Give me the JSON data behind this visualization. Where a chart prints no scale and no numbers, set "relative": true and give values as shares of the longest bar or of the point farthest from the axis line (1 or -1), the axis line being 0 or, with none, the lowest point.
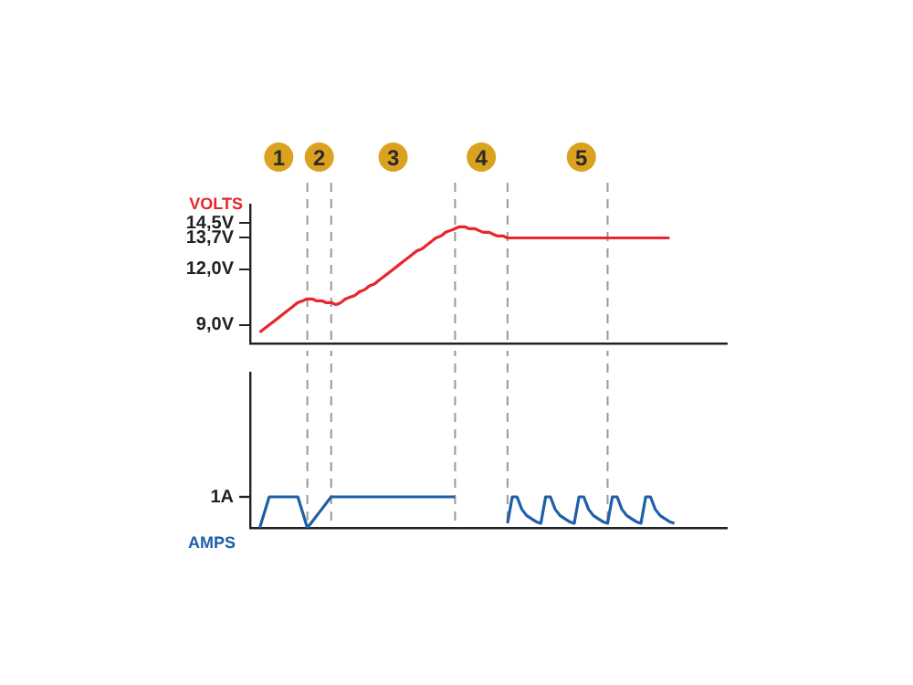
{
  "chart_data": [
    {
      "type": "line",
      "ylabel": "VOLTS",
      "ylim": [
        8,
        15.5
      ],
      "tick_labels": "y",
      "marker": "none",
      "line_style": "solid",
      "annotations": [
        "1",
        "2",
        "3",
        "4",
        "5"
      ],
      "categories": [
        null,
        null,
        null,
        null,
        null,
        null,
        null,
        null,
        null,
        null,
        null,
        null,
        null,
        null,
        null,
        null,
        null,
        null,
        null,
        null,
        null,
        null,
        null,
        null,
        null,
        null,
        null,
        null,
        null,
        null,
        null,
        null,
        null,
        null,
        null,
        null,
        null,
        null,
        null,
        null,
        null,
        null,
        null,
        null,
        null,
        null,
        null,
        null,
        null,
        null,
        null,
        null,
        null,
        null,
        null,
        null,
        null,
        null,
        null,
        null,
        null,
        null,
        null,
        null,
        null,
        null,
        null,
        null,
        null,
        null,
        null,
        null,
        null,
        null,
        null,
        null,
        null,
        null,
        null,
        null,
        null,
        null,
        null,
        null,
        null,
        null,
        null,
        null,
        null,
        null,
        null,
        null,
        null,
        null,
        null,
        null,
        null,
        null,
        null,
        null,
        null
      ],
      "yticks": [
        {
          "value": 9,
          "label": "9,0V"
        },
        {
          "value": 12,
          "label": "12,0V"
        },
        {
          "value": 13.7,
          "label": "13,7V"
        },
        {
          "value": 14.5,
          "label": "14,5V"
        }
      ],
      "series": [
        {
          "color": "#e8262b",
          "values": [
            null,
            null,
            8.6,
            8.8,
            9.0,
            9.2,
            9.4,
            9.6,
            9.8,
            10.0,
            10.2,
            10.3,
            10.4,
            10.4,
            10.3,
            10.3,
            10.2,
            10.2,
            10.1,
            10.2,
            10.4,
            10.5,
            10.6,
            10.8,
            10.9,
            11.1,
            11.2,
            11.4,
            11.6,
            11.8,
            12.0,
            12.2,
            12.4,
            12.6,
            12.8,
            13.0,
            13.1,
            13.3,
            13.5,
            13.7,
            13.8,
            14.0,
            14.1,
            14.2,
            14.3,
            14.3,
            14.2,
            14.2,
            14.1,
            14.0,
            14.0,
            13.9,
            13.8,
            13.8,
            13.7,
            13.7,
            13.7,
            13.7,
            13.7,
            13.7,
            13.7,
            13.7,
            13.7,
            13.7,
            13.7,
            13.7,
            13.7,
            13.7,
            13.7,
            13.7,
            13.7,
            13.7,
            13.7,
            13.7,
            13.7,
            13.7,
            13.7,
            13.7,
            13.7,
            13.7,
            13.7,
            13.7,
            13.7,
            13.7,
            13.7,
            13.7,
            13.7,
            13.7,
            13.7,
            null,
            null,
            null,
            null,
            null,
            null,
            null,
            null,
            null,
            null,
            null,
            null
          ]
        }
      ]
    },
    {
      "type": "line",
      "ylabel": "AMPS",
      "relative": true,
      "tick_labels": false,
      "marker": "none",
      "line_style": "solid",
      "annotations": [
        "1A"
      ],
      "categories": [
        null,
        null,
        null,
        null,
        null,
        null,
        null,
        null,
        null,
        null,
        null,
        null,
        null,
        null,
        null,
        null,
        null,
        null,
        null,
        null,
        null,
        null,
        null,
        null,
        null,
        null,
        null,
        null,
        null,
        null,
        null,
        null,
        null,
        null,
        null,
        null,
        null,
        null,
        null,
        null,
        null,
        null,
        null,
        null,
        null,
        null,
        null,
        null,
        null,
        null,
        null,
        null,
        null,
        null,
        null,
        null,
        null,
        null,
        null,
        null,
        null,
        null,
        null,
        null,
        null,
        null,
        null,
        null,
        null,
        null,
        null,
        null,
        null,
        null,
        null,
        null,
        null,
        null,
        null,
        null,
        null,
        null,
        null,
        null,
        null,
        null,
        null,
        null,
        null,
        null,
        null,
        null,
        null,
        null,
        null,
        null,
        null,
        null,
        null,
        null,
        null
      ],
      "series": [
        {
          "color": "#1f5fa8",
          "values": [
            null,
            null,
            0,
            0.5,
            1,
            1,
            1,
            1,
            1,
            1,
            1,
            0.5,
            0,
            0.2,
            0.4,
            0.6,
            0.8,
            1,
            1,
            1,
            1,
            1,
            1,
            1,
            1,
            1,
            1,
            1,
            1,
            1,
            1,
            1,
            1,
            1,
            1,
            1,
            1,
            1,
            1,
            1,
            1,
            1,
            1,
            1,
            null,
            null,
            null,
            null,
            null,
            null,
            null,
            null,
            null,
            null,
            0.15,
            1,
            1,
            0.6,
            0.4,
            0.3,
            0.2,
            0.15,
            1,
            1,
            0.6,
            0.4,
            0.3,
            0.2,
            0.15,
            1,
            1,
            0.6,
            0.4,
            0.3,
            0.2,
            0.15,
            1,
            1,
            0.6,
            0.4,
            0.3,
            0.2,
            0.15,
            1,
            1,
            0.6,
            0.4,
            0.3,
            0.2,
            0.15,
            null,
            null,
            null,
            null,
            null,
            null,
            null,
            null,
            null,
            null,
            null
          ]
        }
      ]
    }
  ]
}
